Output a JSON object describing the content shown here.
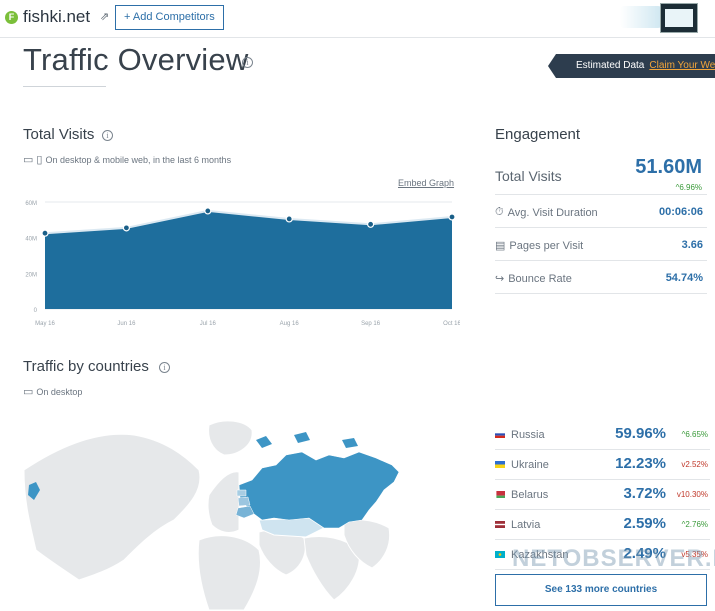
{
  "header": {
    "site_badge": "F",
    "site_name": "fishki.net",
    "add_competitors": "+ Add Competitors"
  },
  "page": {
    "title": "Traffic Overview"
  },
  "estimated": {
    "label": "Estimated Data",
    "link": "Claim Your Webs"
  },
  "total_visits": {
    "title": "Total Visits",
    "subtitle": "On desktop & mobile web, in the last 6 months",
    "embed_link": "Embed Graph"
  },
  "chart_data": {
    "type": "area",
    "categories": [
      "May 16",
      "Jun 16",
      "Jul 16",
      "Aug 16",
      "Sep 16",
      "Oct 16"
    ],
    "values": [
      42.5,
      45.5,
      55,
      50.5,
      47.5,
      51.6
    ],
    "ylim": [
      0,
      60
    ],
    "yticks": [
      "0",
      "20M",
      "40M",
      "60M"
    ],
    "grid": true,
    "color": "#1e6e9d"
  },
  "engagement": {
    "title": "Engagement",
    "total_visits_label": "Total Visits",
    "total_visits_value": "51.60M",
    "total_visits_change": "^6.96%",
    "rows": [
      {
        "label": "Avg. Visit Duration",
        "value": "00:06:06"
      },
      {
        "label": "Pages per Visit",
        "value": "3.66"
      },
      {
        "label": "Bounce Rate",
        "value": "54.74%"
      }
    ]
  },
  "countries": {
    "title": "Traffic by countries",
    "subtitle": "On desktop",
    "rows": [
      {
        "name": "Russia",
        "share": "59.96%",
        "change": "^6.65%",
        "dir": "up"
      },
      {
        "name": "Ukraine",
        "share": "12.23%",
        "change": "v2.52%",
        "dir": "down"
      },
      {
        "name": "Belarus",
        "share": "3.72%",
        "change": "v10.30%",
        "dir": "down"
      },
      {
        "name": "Latvia",
        "share": "2.59%",
        "change": "^2.76%",
        "dir": "up"
      },
      {
        "name": "Kazakhstan",
        "share": "2.49%",
        "change": "v5.35%",
        "dir": "down"
      }
    ],
    "see_more": "See 133 more countries"
  },
  "watermark": "NETOBSERVER.RU",
  "icons": {
    "external_link": "external-link-icon",
    "desktop": "desktop-icon",
    "mobile": "mobile-icon",
    "clock": "clock-icon",
    "pages": "pages-icon",
    "bounce": "bounce-icon"
  }
}
